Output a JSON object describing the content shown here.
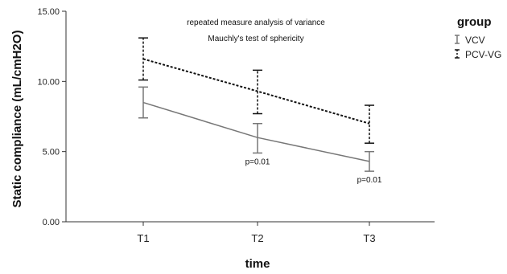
{
  "chart_data": {
    "type": "line",
    "xlabel": "time",
    "ylabel": "Static compliance (mL/cmH2O)",
    "categories": [
      "T1",
      "T2",
      "T3"
    ],
    "ylim": [
      0,
      15
    ],
    "yticks": [
      "0.00",
      "5.00",
      "10.00",
      "15.00"
    ],
    "annotations": [
      "repeated measure analysis of variance",
      "Mauchly's test of sphericity"
    ],
    "legend": {
      "title": "group",
      "position": "top-right"
    },
    "series": [
      {
        "name": "VCV",
        "style": "solid",
        "color": "#777777",
        "values": [
          8.5,
          6.0,
          4.3
        ],
        "error_low": [
          7.4,
          4.9,
          3.6
        ],
        "error_high": [
          9.6,
          7.0,
          5.0
        ],
        "point_labels": [
          "",
          "p=0.01",
          "p=0.01"
        ]
      },
      {
        "name": "PCV-VG",
        "style": "dotted",
        "color": "#111111",
        "values": [
          11.6,
          9.3,
          7.0
        ],
        "error_low": [
          10.1,
          7.7,
          5.6
        ],
        "error_high": [
          13.1,
          10.8,
          8.3
        ],
        "point_labels": [
          "",
          "",
          ""
        ]
      }
    ]
  }
}
